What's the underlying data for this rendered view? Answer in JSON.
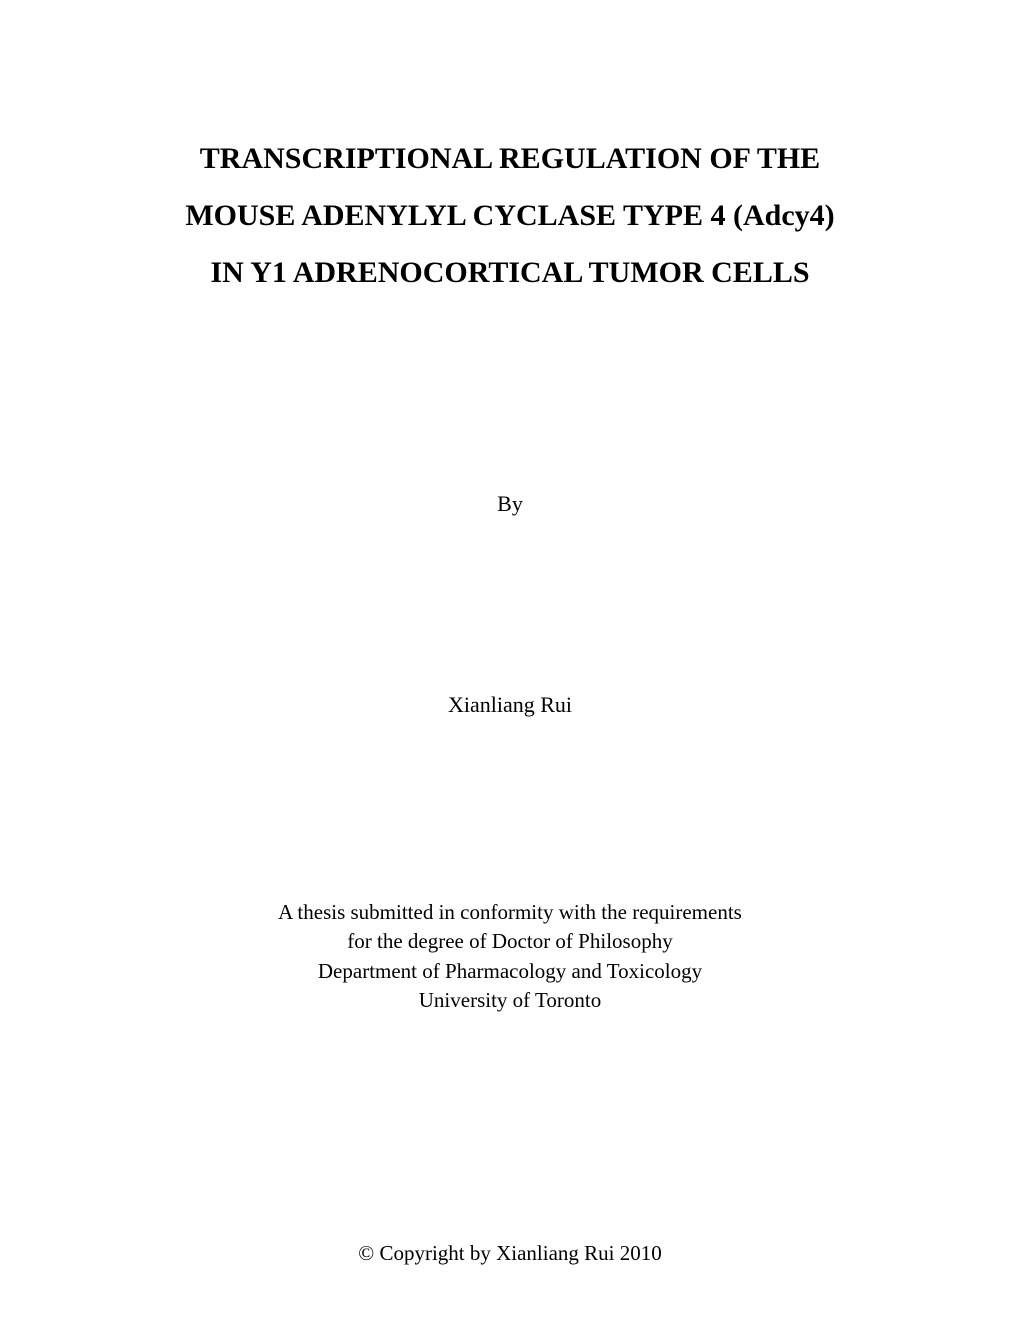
{
  "title": {
    "line1": "TRANSCRIPTIONAL REGULATION OF THE",
    "line2": "MOUSE ADENYLYL CYCLASE TYPE 4 (Adcy4)",
    "line3": "IN Y1 ADRENOCORTICAL TUMOR CELLS"
  },
  "by_label": "By",
  "author_name": "Xianliang Rui",
  "thesis": {
    "line1": "A thesis submitted in conformity with the requirements",
    "line2": "for the degree of Doctor of Philosophy",
    "line3": "Department of Pharmacology and Toxicology",
    "line4": "University of Toronto"
  },
  "copyright": "© Copyright by Xianliang Rui 2010",
  "colors": {
    "background": "#ffffff",
    "text": "#000000"
  },
  "typography": {
    "font_family": "Times New Roman",
    "title_fontsize": 30,
    "title_fontweight": "bold",
    "body_fontsize": 22
  }
}
